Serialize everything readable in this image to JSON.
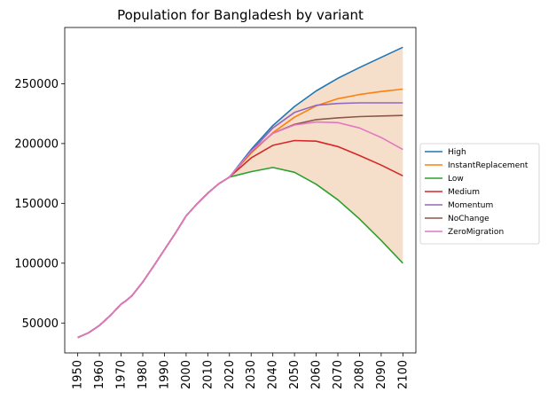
{
  "chart_data": {
    "type": "line",
    "title": "Population for Bangladesh by variant",
    "xlabel": "",
    "ylabel": "",
    "xlim": [
      1944,
      2106
    ],
    "ylim": [
      25000,
      297000
    ],
    "x_ticks": [
      "1950",
      "1960",
      "1970",
      "1980",
      "1990",
      "2000",
      "2010",
      "2020",
      "2030",
      "2040",
      "2050",
      "2060",
      "2070",
      "2080",
      "2090",
      "2100"
    ],
    "y_ticks": [
      "50000",
      "100000",
      "150000",
      "200000",
      "250000"
    ],
    "legend_position": "right",
    "grid": false,
    "shaded_band": {
      "between": [
        "Low",
        "High"
      ],
      "color": "#f5dfca"
    },
    "historical": {
      "x": [
        1950,
        1955,
        1960,
        1965,
        1970,
        1972,
        1975,
        1980,
        1985,
        1990,
        1995,
        2000,
        2005,
        2010,
        2015,
        2020
      ],
      "y": [
        37900,
        41800,
        47900,
        56200,
        65800,
        68200,
        72800,
        84200,
        97500,
        111200,
        125000,
        139500,
        149500,
        158500,
        166300,
        172000
      ]
    },
    "series": [
      {
        "name": "High",
        "color": "#1f77b4",
        "x": [
          2020,
          2030,
          2040,
          2050,
          2060,
          2070,
          2080,
          2090,
          2100
        ],
        "y": [
          172000,
          195000,
          215000,
          231000,
          244000,
          254500,
          263500,
          272000,
          280500
        ]
      },
      {
        "name": "InstantReplacement",
        "color": "#ff7f0e",
        "x": [
          2020,
          2030,
          2040,
          2050,
          2060,
          2070,
          2080,
          2090,
          2100
        ],
        "y": [
          172000,
          192000,
          209000,
          222000,
          231500,
          237500,
          241000,
          243500,
          245500
        ]
      },
      {
        "name": "Low",
        "color": "#2ca02c",
        "x": [
          2020,
          2030,
          2040,
          2050,
          2060,
          2070,
          2080,
          2090,
          2100
        ],
        "y": [
          172000,
          176500,
          180000,
          176000,
          166000,
          153000,
          137000,
          119000,
          100000
        ]
      },
      {
        "name": "Medium",
        "color": "#d62728",
        "x": [
          2020,
          2030,
          2040,
          2050,
          2060,
          2070,
          2080,
          2090,
          2100
        ],
        "y": [
          172000,
          188000,
          198500,
          202500,
          202000,
          197500,
          190000,
          182000,
          173000
        ]
      },
      {
        "name": "Momentum",
        "color": "#9467bd",
        "x": [
          2020,
          2030,
          2040,
          2050,
          2060,
          2070,
          2080,
          2090,
          2100
        ],
        "y": [
          172000,
          193500,
          213000,
          226000,
          232000,
          233500,
          234000,
          234000,
          234000
        ]
      },
      {
        "name": "NoChange",
        "color": "#8c564b",
        "x": [
          2020,
          2030,
          2040,
          2050,
          2060,
          2070,
          2080,
          2090,
          2100
        ],
        "y": [
          172000,
          193000,
          208500,
          216000,
          220000,
          221500,
          222500,
          223000,
          223500
        ]
      },
      {
        "name": "ZeroMigration",
        "color": "#e377c2",
        "x": [
          2020,
          2030,
          2040,
          2050,
          2060,
          2070,
          2080,
          2090,
          2100
        ],
        "y": [
          172000,
          193500,
          208500,
          215500,
          218000,
          217500,
          213000,
          205000,
          195000
        ]
      }
    ]
  }
}
